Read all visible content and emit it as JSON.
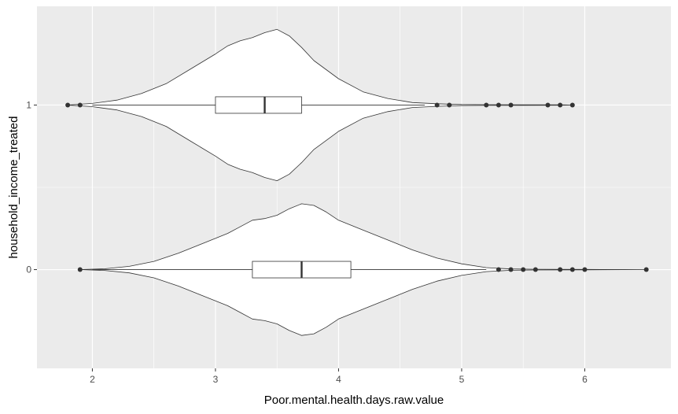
{
  "chart_data": {
    "type": "violin",
    "orientation": "horizontal",
    "xlabel": "Poor.mental.health.days.raw.value",
    "ylabel": "household_income_treated",
    "xlim": [
      1.55,
      6.7
    ],
    "ylim": [
      -0.6,
      1.6
    ],
    "x_ticks": [
      2,
      3,
      4,
      5,
      6
    ],
    "y_ticks": [
      0,
      1
    ],
    "grid": true,
    "colors": {
      "panel": "#ebebeb",
      "grid": "#ffffff",
      "violin_fill": "#ffffff",
      "outline": "#333333",
      "point": "#333333"
    },
    "groups": [
      {
        "category": "1",
        "y": 1,
        "box": {
          "q1": 3.0,
          "median": 3.4,
          "q3": 3.7,
          "whisker_low": 2.0,
          "whisker_high": 4.7
        },
        "outliers": [
          1.8,
          1.9,
          4.8,
          4.9,
          5.2,
          5.3,
          5.4,
          5.7,
          5.8,
          5.9
        ],
        "density": [
          [
            1.8,
            0.0
          ],
          [
            1.9,
            0.005
          ],
          [
            2.0,
            0.01
          ],
          [
            2.2,
            0.03
          ],
          [
            2.4,
            0.07
          ],
          [
            2.6,
            0.13
          ],
          [
            2.8,
            0.22
          ],
          [
            3.0,
            0.31
          ],
          [
            3.1,
            0.36
          ],
          [
            3.2,
            0.39
          ],
          [
            3.3,
            0.41
          ],
          [
            3.4,
            0.44
          ],
          [
            3.5,
            0.46
          ],
          [
            3.6,
            0.42
          ],
          [
            3.7,
            0.35
          ],
          [
            3.8,
            0.27
          ],
          [
            4.0,
            0.16
          ],
          [
            4.2,
            0.08
          ],
          [
            4.4,
            0.04
          ],
          [
            4.6,
            0.015
          ],
          [
            4.8,
            0.008
          ],
          [
            5.0,
            0.003
          ],
          [
            5.2,
            0.002
          ],
          [
            5.5,
            0.0015
          ],
          [
            5.8,
            0.001
          ],
          [
            5.9,
            0.0
          ]
        ]
      },
      {
        "category": "0",
        "y": 0,
        "box": {
          "q1": 3.3,
          "median": 3.7,
          "q3": 4.1,
          "whisker_low": 2.0,
          "whisker_high": 5.2
        },
        "outliers": [
          1.9,
          5.3,
          5.4,
          5.5,
          5.6,
          5.8,
          5.9,
          6.0,
          6.5
        ],
        "density": [
          [
            1.9,
            0.0
          ],
          [
            2.1,
            0.005
          ],
          [
            2.3,
            0.02
          ],
          [
            2.5,
            0.05
          ],
          [
            2.7,
            0.1
          ],
          [
            2.9,
            0.16
          ],
          [
            3.1,
            0.22
          ],
          [
            3.2,
            0.26
          ],
          [
            3.3,
            0.3
          ],
          [
            3.4,
            0.31
          ],
          [
            3.5,
            0.33
          ],
          [
            3.6,
            0.37
          ],
          [
            3.7,
            0.4
          ],
          [
            3.8,
            0.39
          ],
          [
            3.9,
            0.35
          ],
          [
            4.0,
            0.3
          ],
          [
            4.2,
            0.24
          ],
          [
            4.4,
            0.18
          ],
          [
            4.6,
            0.12
          ],
          [
            4.8,
            0.07
          ],
          [
            5.0,
            0.035
          ],
          [
            5.2,
            0.012
          ],
          [
            5.4,
            0.004
          ],
          [
            5.6,
            0.002
          ],
          [
            6.0,
            0.001
          ],
          [
            6.5,
            0.0
          ]
        ]
      }
    ]
  }
}
